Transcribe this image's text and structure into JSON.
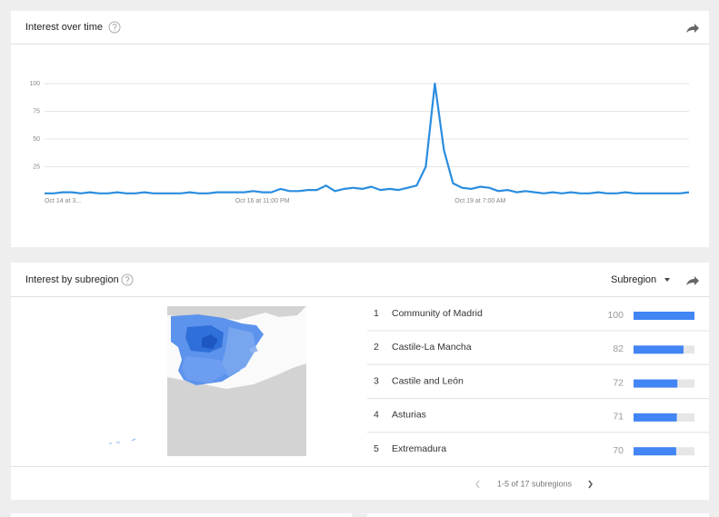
{
  "interest_over_time": {
    "title": "Interest over time",
    "chart_data": {
      "type": "line",
      "categories": [
        "Oct 14 at 3...",
        null,
        null,
        null,
        null,
        null,
        null,
        null,
        null,
        null,
        null,
        null,
        null,
        null,
        null,
        null,
        null,
        null,
        null,
        null,
        null,
        null,
        null,
        null,
        "Oct 16 at 11:00 PM",
        null,
        null,
        null,
        null,
        null,
        null,
        null,
        null,
        null,
        null,
        null,
        null,
        null,
        null,
        null,
        null,
        null,
        null,
        null,
        null,
        null,
        null,
        null,
        "Oct 19 at 7:00 AM",
        null,
        null,
        null,
        null,
        null,
        null,
        null,
        null,
        null,
        null,
        null,
        null,
        null,
        null,
        null,
        null,
        null,
        null,
        null,
        null,
        null,
        null,
        null
      ],
      "series": [
        {
          "color": "#2b8ddf",
          "values": [
            1,
            1,
            2,
            2,
            1,
            2,
            1,
            1,
            2,
            1,
            1,
            2,
            1,
            1,
            1,
            1,
            2,
            1,
            1,
            2,
            2,
            2,
            2,
            3,
            2,
            2,
            5,
            3,
            3,
            4,
            4,
            8,
            3,
            5,
            6,
            5,
            7,
            4,
            5,
            4,
            6,
            8,
            25,
            100,
            40,
            10,
            6,
            5,
            7,
            6,
            3,
            4,
            2,
            3,
            2,
            1,
            2,
            1,
            2,
            1,
            1,
            2,
            1,
            1,
            2,
            1,
            1,
            1,
            1,
            1,
            1,
            2
          ]
        }
      ],
      "ylim": [
        0,
        100
      ],
      "yticks": [
        25,
        50,
        75,
        100
      ],
      "grid": true
    }
  },
  "interest_by_subregion": {
    "title": "Interest by subregion",
    "selector": "Subregion",
    "rows": [
      {
        "rank": 1,
        "name": "Community of Madrid",
        "value": 100
      },
      {
        "rank": 2,
        "name": "Castile-La Mancha",
        "value": 82
      },
      {
        "rank": 3,
        "name": "Castile and León",
        "value": 72
      },
      {
        "rank": 4,
        "name": "Asturias",
        "value": 71
      },
      {
        "rank": 5,
        "name": "Extremadura",
        "value": 70
      }
    ],
    "pagination": "1-5 of 17 subregions"
  }
}
